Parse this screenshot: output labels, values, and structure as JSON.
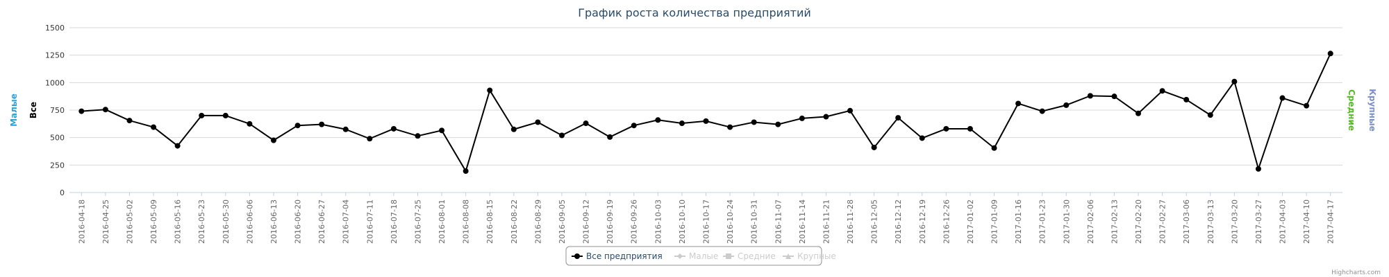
{
  "chart_data": {
    "type": "line",
    "title": "График роста количества предприятий",
    "y_axes": [
      {
        "label": "Малые",
        "color": "#2ba3d6",
        "side": "left"
      },
      {
        "label": "Все",
        "color": "#000000",
        "side": "left"
      },
      {
        "label": "Средние",
        "color": "#55bb22",
        "side": "right"
      },
      {
        "label": "Крупные",
        "color": "#7b8fc8",
        "side": "right"
      }
    ],
    "ylim": [
      0,
      1500
    ],
    "yticks": [
      0,
      250,
      500,
      750,
      1000,
      1250,
      1500
    ],
    "grid": true,
    "legend_position": "bottom-center",
    "x": [
      "2016-04-18",
      "2016-04-25",
      "2016-05-02",
      "2016-05-09",
      "2016-05-16",
      "2016-05-23",
      "2016-05-30",
      "2016-06-06",
      "2016-06-13",
      "2016-06-20",
      "2016-06-27",
      "2016-07-04",
      "2016-07-11",
      "2016-07-18",
      "2016-07-25",
      "2016-08-01",
      "2016-08-08",
      "2016-08-15",
      "2016-08-22",
      "2016-08-29",
      "2016-09-05",
      "2016-09-12",
      "2016-09-19",
      "2016-09-26",
      "2016-10-03",
      "2016-10-10",
      "2016-10-17",
      "2016-10-24",
      "2016-10-31",
      "2016-11-07",
      "2016-11-14",
      "2016-11-21",
      "2016-11-28",
      "2016-12-05",
      "2016-12-12",
      "2016-12-19",
      "2016-12-26",
      "2017-01-02",
      "2017-01-09",
      "2017-01-16",
      "2017-01-23",
      "2017-01-30",
      "2017-02-06",
      "2017-02-13",
      "2017-02-20",
      "2017-02-27",
      "2017-03-06",
      "2017-03-13",
      "2017-03-20",
      "2017-03-27",
      "2017-04-03",
      "2017-04-10",
      "2017-04-17"
    ],
    "series": [
      {
        "name": "Все предприятия",
        "color": "#000000",
        "visible": true,
        "marker": "circle",
        "values": [
          740,
          755,
          655,
          595,
          425,
          700,
          700,
          625,
          475,
          610,
          620,
          575,
          490,
          580,
          515,
          565,
          195,
          930,
          575,
          640,
          520,
          630,
          505,
          610,
          660,
          630,
          650,
          595,
          640,
          620,
          675,
          690,
          745,
          410,
          680,
          495,
          580,
          580,
          405,
          810,
          740,
          795,
          880,
          875,
          720,
          925,
          845,
          705,
          1010,
          215,
          860,
          790,
          1265
        ]
      },
      {
        "name": "Малые",
        "color": "#cccccc",
        "visible": false,
        "marker": "diamond"
      },
      {
        "name": "Средние",
        "color": "#cccccc",
        "visible": false,
        "marker": "square"
      },
      {
        "name": "Крупные",
        "color": "#cccccc",
        "visible": false,
        "marker": "triangle"
      }
    ]
  },
  "credits": "Highcharts.com"
}
